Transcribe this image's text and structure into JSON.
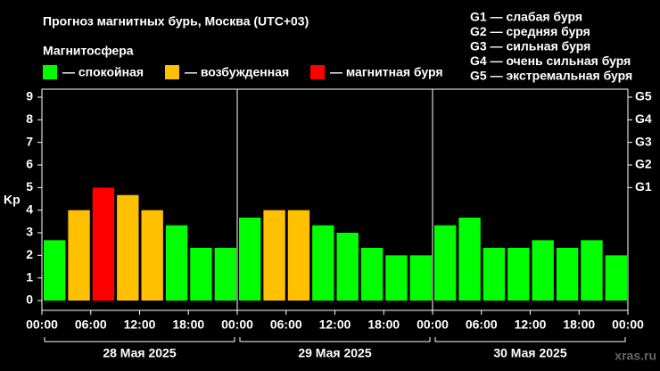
{
  "chart_data": {
    "type": "bar",
    "title": "Прогноз магнитных бурь, Москва (UTC+03)",
    "legend_title": "Магнитосфера",
    "legend": [
      {
        "name": "— спокойная",
        "color": "#00ff00"
      },
      {
        "name": "— возбужденная",
        "color": "#ffc000"
      },
      {
        "name": "— магнитная буря",
        "color": "#ff0000"
      }
    ],
    "storm_levels": [
      "G1 — слабая буря",
      "G2 — средняя буря",
      "G3 — сильная буря",
      "G4 — очень сильная буря",
      "G5 — экстремальная буря"
    ],
    "ylabel": "Kp",
    "x": [
      0,
      3,
      6,
      9,
      12,
      15,
      18,
      21,
      24,
      27,
      30,
      33,
      36,
      39,
      42,
      45,
      48,
      51,
      54,
      57,
      60,
      63,
      66,
      69
    ],
    "values": [
      2.67,
      4,
      5,
      4.67,
      4,
      3.33,
      2.33,
      2.33,
      3.67,
      4,
      4,
      3.33,
      3,
      2.33,
      2,
      2,
      3.33,
      3.67,
      2.33,
      2.33,
      2.67,
      2.33,
      2.67,
      2
    ],
    "colors": [
      "#00ff00",
      "#ffc000",
      "#ff0000",
      "#ffc000",
      "#ffc000",
      "#00ff00",
      "#00ff00",
      "#00ff00",
      "#00ff00",
      "#ffc000",
      "#ffc000",
      "#00ff00",
      "#00ff00",
      "#00ff00",
      "#00ff00",
      "#00ff00",
      "#00ff00",
      "#00ff00",
      "#00ff00",
      "#00ff00",
      "#00ff00",
      "#00ff00",
      "#00ff00",
      "#00ff00"
    ],
    "xlim": [
      0,
      72
    ],
    "xticks": [
      {
        "value": 0,
        "label": "00:00"
      },
      {
        "value": 6,
        "label": "06:00"
      },
      {
        "value": 12,
        "label": "12:00"
      },
      {
        "value": 18,
        "label": "18:00"
      },
      {
        "value": 24,
        "label": "00:00"
      },
      {
        "value": 30,
        "label": "06:00"
      },
      {
        "value": 36,
        "label": "12:00"
      },
      {
        "value": 42,
        "label": "18:00"
      },
      {
        "value": 48,
        "label": "00:00"
      },
      {
        "value": 54,
        "label": "06:00"
      },
      {
        "value": 60,
        "label": "12:00"
      },
      {
        "value": 66,
        "label": "18:00"
      },
      {
        "value": 72,
        "label": "00:00"
      }
    ],
    "days": [
      "28 Мая 2025",
      "29 Мая 2025",
      "30 Мая 2025"
    ],
    "ylim": [
      0,
      9
    ],
    "yticks": [
      0,
      1,
      2,
      3,
      4,
      5,
      6,
      7,
      8,
      9
    ],
    "y2lim": [
      0,
      9
    ],
    "y2ticks": [
      {
        "value": 5,
        "label": "G1"
      },
      {
        "value": 6,
        "label": "G2"
      },
      {
        "value": 7,
        "label": "G3"
      },
      {
        "value": 8,
        "label": "G4"
      },
      {
        "value": 9,
        "label": "G5"
      }
    ],
    "watermark": "xras.ru"
  }
}
